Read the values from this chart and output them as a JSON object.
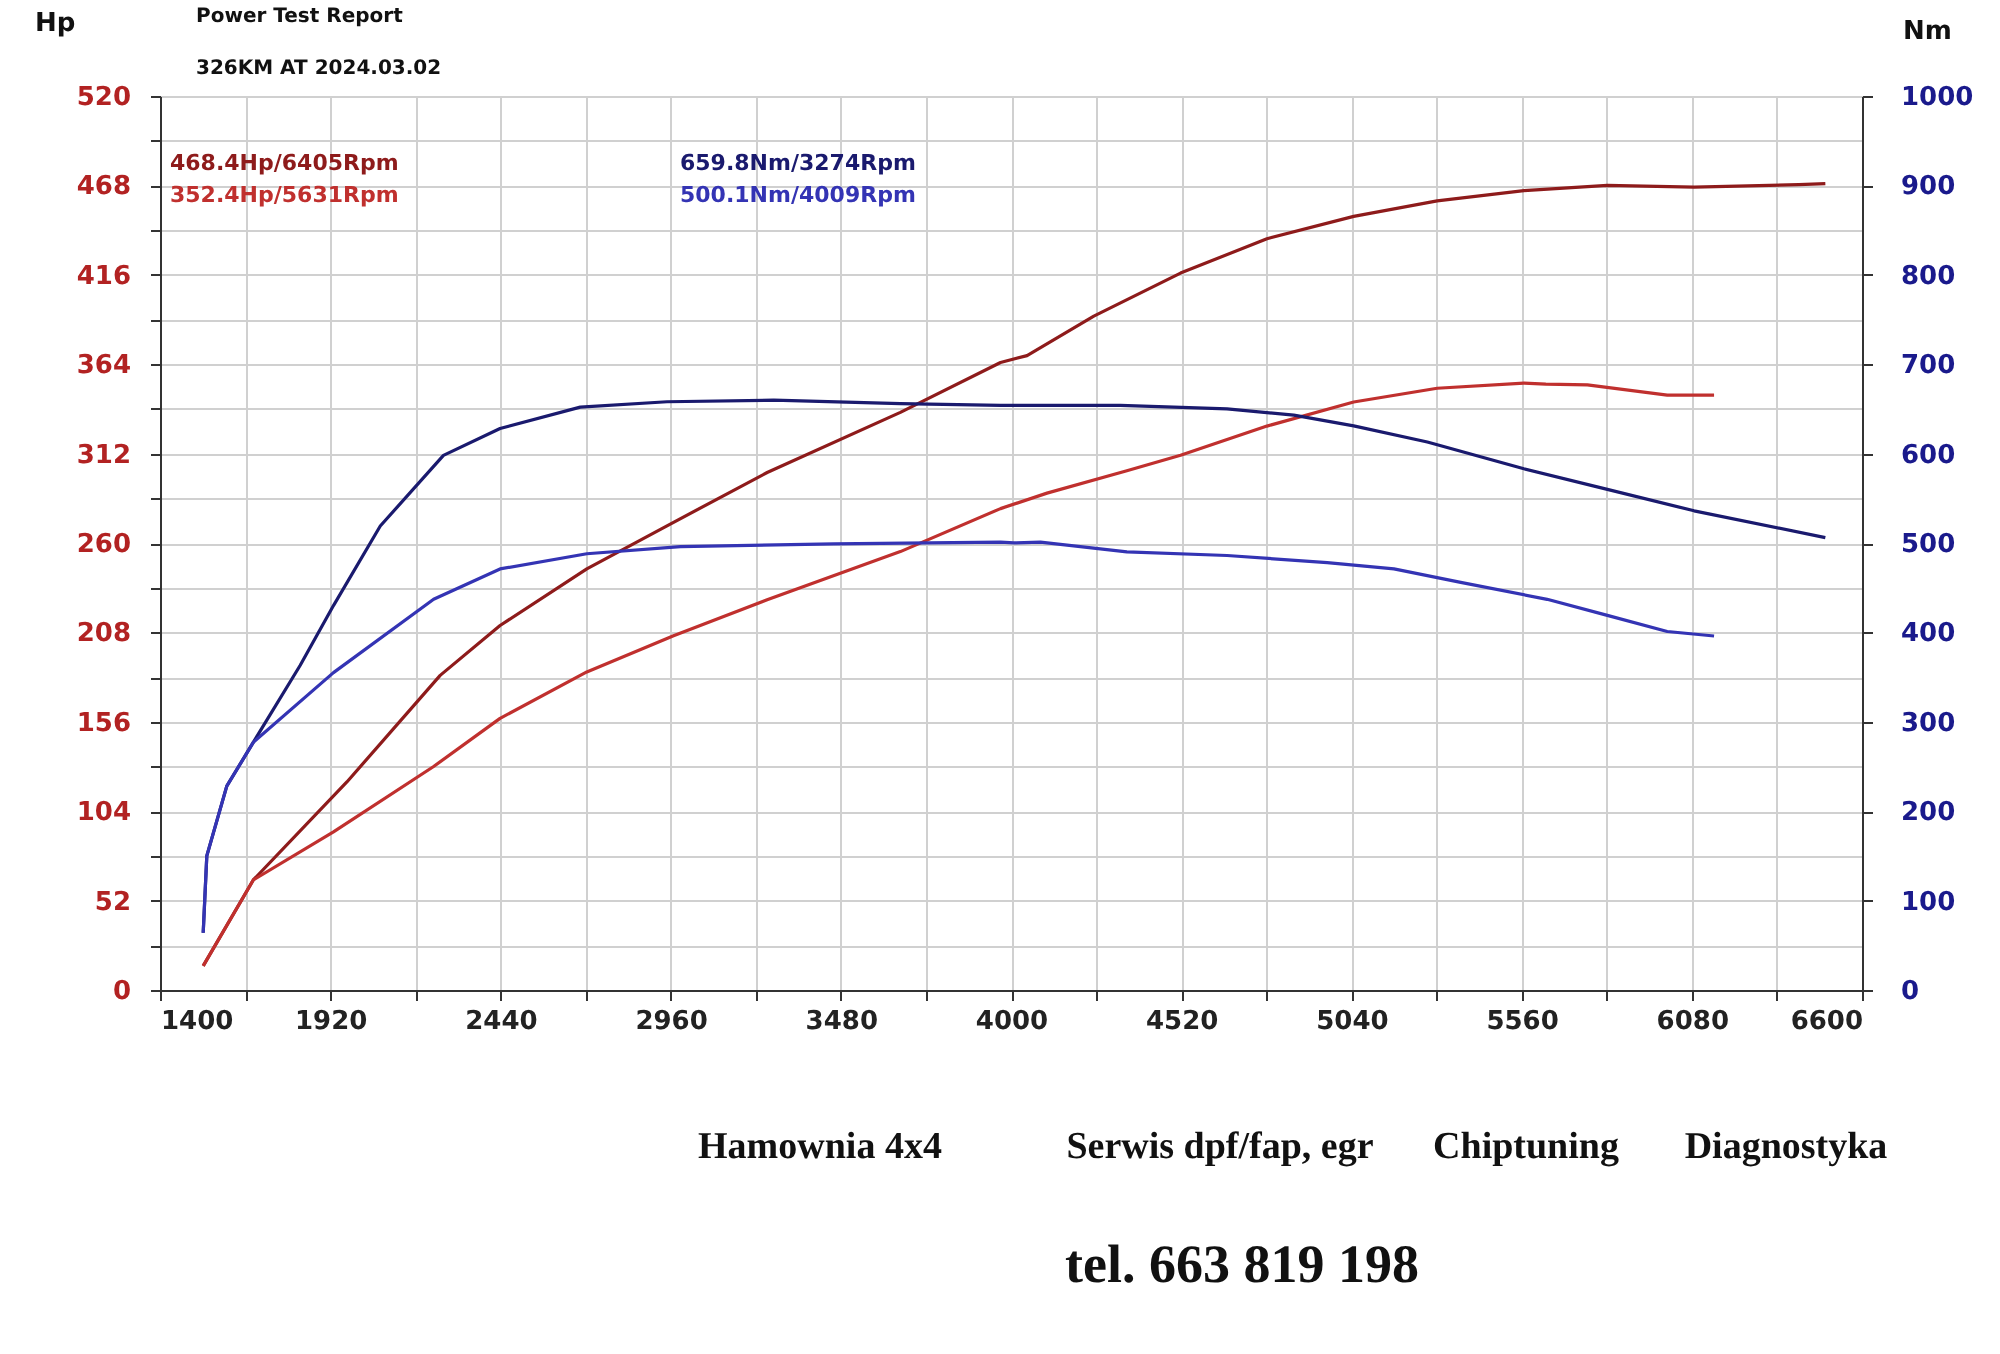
{
  "chart_data": {
    "type": "line",
    "title": "Power Test Report",
    "subtitle": "326KM AT 2024.03.02",
    "ylabel": "Hp",
    "y2label": "Nm",
    "series": [
      {
        "color": "#8e1b1b",
        "x": [
          1532,
          1685,
          1971,
          2256,
          2439,
          2704,
          2949,
          3255,
          3662,
          3968,
          4049,
          4253,
          4518,
          4782,
          5047,
          5302,
          5567,
          5822,
          6087,
          6407,
          6488
        ],
        "values": [
          14,
          64,
          121,
          183,
          212,
          245,
          270,
          301,
          336,
          365,
          369,
          392,
          417,
          437,
          450,
          459,
          465,
          468,
          467,
          468.4,
          469
        ]
      },
      {
        "color": "#c0302e",
        "x": [
          1532,
          1685,
          1930,
          2236,
          2439,
          2704,
          2969,
          3255,
          3662,
          3968,
          4110,
          4354,
          4518,
          4782,
          5047,
          5302,
          5567,
          5634,
          5761,
          6005,
          6148
        ],
        "values": [
          14,
          64,
          92,
          130,
          158,
          185,
          206,
          227,
          255,
          280,
          289,
          302,
          311,
          328,
          342,
          350,
          353,
          352.4,
          352,
          346,
          346
        ]
      },
      {
        "color": "#1a1a6e",
        "axis": "y2",
        "x": [
          1532,
          1543,
          1604,
          1685,
          1828,
          1930,
          2073,
          2266,
          2439,
          2684,
          2949,
          3275,
          3662,
          3968,
          4334,
          4660,
          4864,
          5047,
          5272,
          5567,
          5822,
          6087,
          6488
        ],
        "values": [
          64,
          150,
          228,
          277,
          363,
          430,
          519,
          598,
          628,
          652,
          658,
          659.8,
          656,
          654,
          654,
          650,
          643,
          631,
          613,
          583,
          560,
          536,
          506
        ]
      },
      {
        "color": "#3434b4",
        "axis": "y2",
        "x": [
          1532,
          1543,
          1604,
          1685,
          1930,
          2236,
          2439,
          2704,
          2990,
          3459,
          3968,
          4009,
          4090,
          4354,
          4660,
          4966,
          5170,
          5374,
          5638,
          5822,
          6005,
          6148
        ],
        "values": [
          64,
          150,
          228,
          277,
          355,
          437,
          471,
          488,
          496,
          499,
          501,
          500.1,
          501,
          490,
          486,
          478,
          471,
          456,
          437,
          419,
          401,
          396
        ]
      }
    ],
    "xlim": [
      1400,
      6600
    ],
    "xticks": [
      1400,
      {
        "value": 1660,
        "label": null
      },
      1920,
      {
        "value": 2180,
        "label": null
      },
      2440,
      {
        "value": 2700,
        "label": null
      },
      2960,
      {
        "value": 3220,
        "label": null
      },
      3480,
      {
        "value": 3740,
        "label": null
      },
      4000,
      {
        "value": 4260,
        "label": null
      },
      4520,
      {
        "value": 4780,
        "label": null
      },
      5040,
      {
        "value": 5300,
        "label": null
      },
      5560,
      {
        "value": 5820,
        "label": null
      },
      6080,
      {
        "value": 6340,
        "label": null
      },
      6600
    ],
    "ylim": [
      0,
      520
    ],
    "yticks": [
      0,
      {
        "value": 26,
        "label": null
      },
      52,
      {
        "value": 78,
        "label": null
      },
      104,
      {
        "value": 130,
        "label": null
      },
      156,
      {
        "value": 182,
        "label": null
      },
      208,
      {
        "value": 234,
        "label": null
      },
      260,
      {
        "value": 286,
        "label": null
      },
      312,
      {
        "value": 338,
        "label": null
      },
      364,
      {
        "value": 390,
        "label": null
      },
      416,
      {
        "value": 442,
        "label": null
      },
      468,
      {
        "value": 494,
        "label": null
      },
      520
    ],
    "y2lim": [
      0,
      1000
    ],
    "y2ticks": [
      0,
      100,
      200,
      300,
      400,
      500,
      600,
      700,
      800,
      900,
      1000
    ],
    "grid": true,
    "legend": false,
    "annotations": [
      "468.4Hp/6405Rpm",
      "352.4Hp/5631Rpm",
      "659.8Nm/3274Rpm",
      "500.1Nm/4009Rpm",
      "Hamownia 4x4",
      "Serwis dpf/fap, egr",
      "Chiptuning",
      "Diagnostyka",
      "tel. 663 819 198"
    ]
  }
}
